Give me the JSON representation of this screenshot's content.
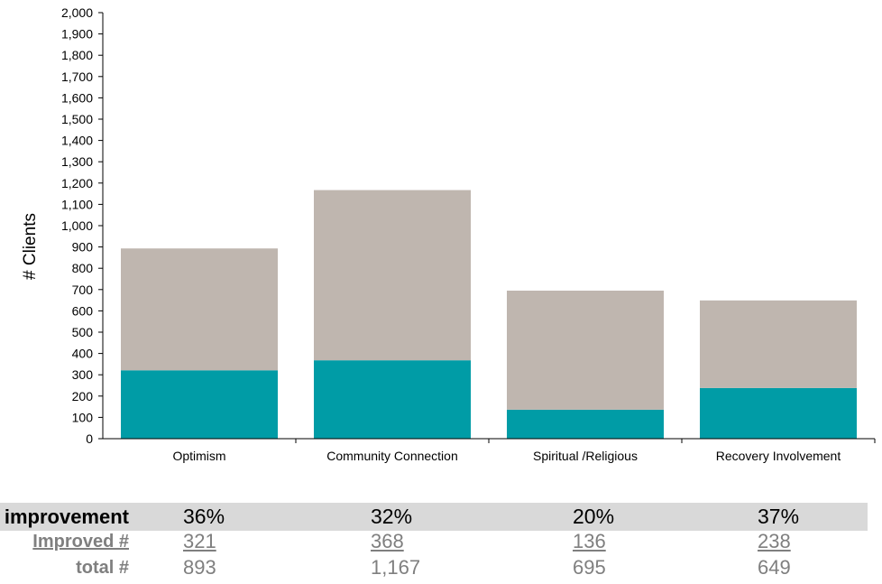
{
  "chart_data": {
    "type": "bar",
    "stacked": true,
    "categories": [
      "Optimism",
      "Community Connection",
      "Spiritual /Religious",
      "Recovery Involvement"
    ],
    "series": [
      {
        "values": [
          321,
          368,
          136,
          238
        ],
        "color": "#009ca6"
      },
      {
        "values": [
          572,
          799,
          559,
          411
        ],
        "color": "#bfb6af"
      }
    ],
    "ylabel": "# Clients",
    "ylim": [
      0,
      2000
    ],
    "yticks": [
      0,
      100,
      200,
      300,
      400,
      500,
      600,
      700,
      800,
      900,
      1000,
      1100,
      1200,
      1300,
      1400,
      1500,
      1600,
      1700,
      1800,
      1900,
      2000
    ],
    "ytick_labels": [
      "0",
      "100",
      "200",
      "300",
      "400",
      "500",
      "600",
      "700",
      "800",
      "900",
      "1,000",
      "1,100",
      "1,200",
      "1,300",
      "1,400",
      "1,500",
      "1,600",
      "1,700",
      "1,800",
      "1,900",
      "2,000"
    ],
    "grid": false,
    "legend": "none"
  },
  "table": {
    "rows": [
      {
        "label": "% improvement",
        "values": [
          "36%",
          "32%",
          "20%",
          "37%"
        ]
      },
      {
        "label": "Improved #",
        "values": [
          "321",
          "368",
          "136",
          "238"
        ]
      },
      {
        "label": "total #",
        "values": [
          "893",
          "1,167",
          "695",
          "649"
        ]
      }
    ]
  }
}
